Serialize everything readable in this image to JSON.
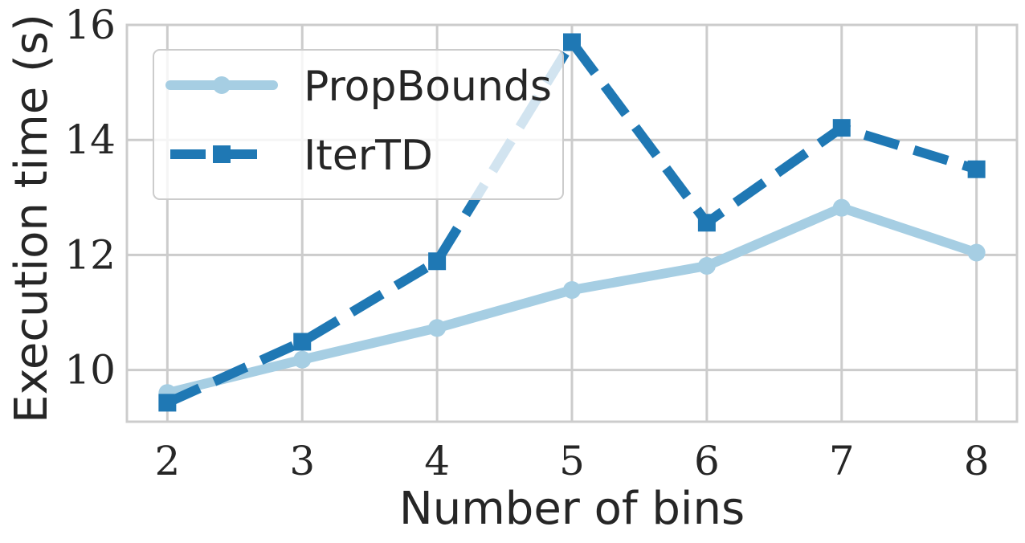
{
  "chart_data": {
    "type": "line",
    "xlabel": "Number of bins",
    "ylabel": "Execution time (s)",
    "x": [
      2,
      3,
      4,
      5,
      6,
      7,
      8
    ],
    "xlim": [
      1.7,
      8.3
    ],
    "ylim": [
      9.1,
      16.0
    ],
    "yticks": [
      10,
      12,
      14,
      16
    ],
    "grid": true,
    "legend_position": "top-left",
    "series": [
      {
        "name": "PropBounds",
        "values": [
          9.6,
          10.18,
          10.73,
          11.39,
          11.81,
          12.82,
          12.04
        ],
        "color": "#a6cee3",
        "line_style": "solid",
        "marker": "circle"
      },
      {
        "name": "IterTD",
        "values": [
          9.43,
          10.49,
          11.89,
          15.7,
          12.56,
          14.21,
          13.49
        ],
        "color": "#1f78b4",
        "line_style": "dashed",
        "marker": "square"
      }
    ]
  }
}
